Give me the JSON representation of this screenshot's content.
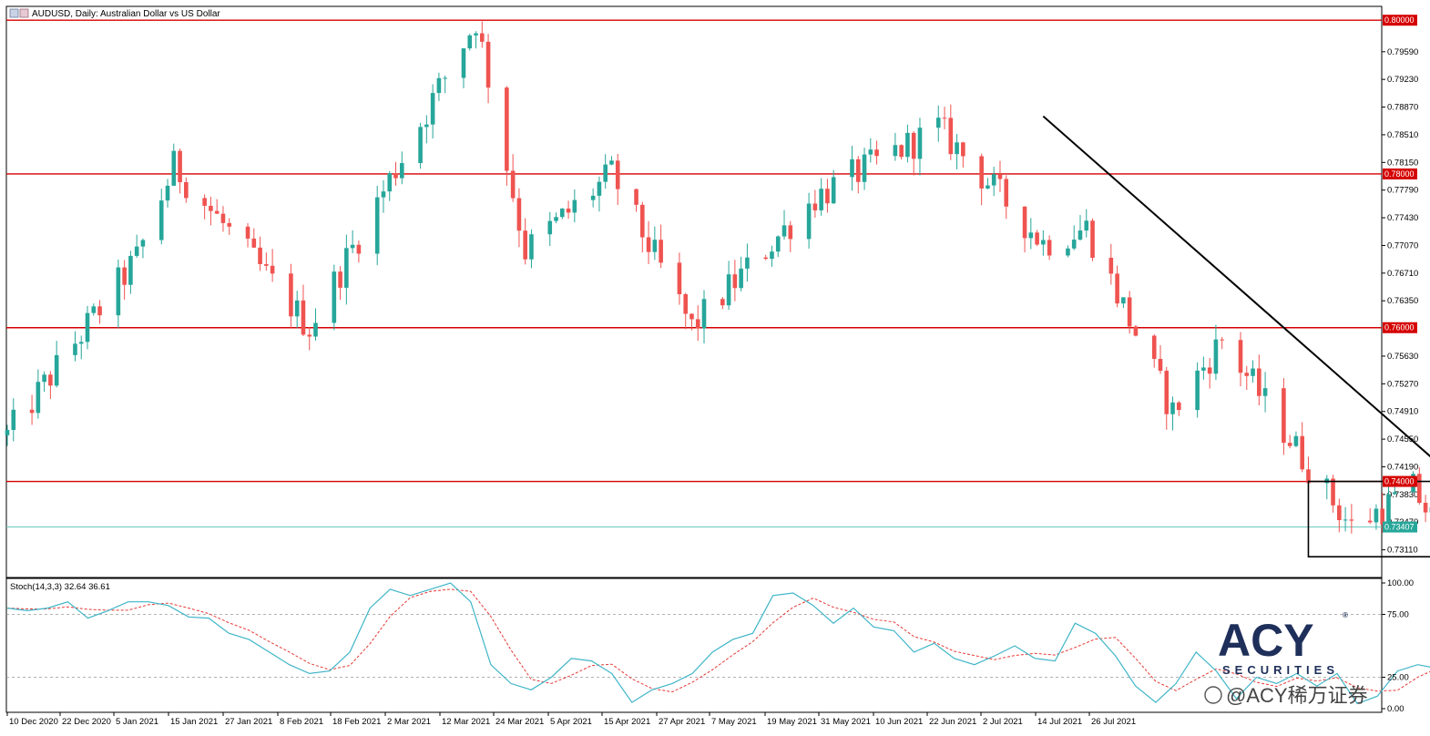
{
  "window": {
    "title": "AUDUSD, Daily:  Australian Dollar vs US Dollar",
    "icon": "chart-window-icon"
  },
  "colors": {
    "bull": "#26a69a",
    "bear": "#ef5350",
    "level_line": "#d50000",
    "current_price": "#6cc9c0",
    "trendline": "#000000",
    "stoch_main": "#3fb5c8",
    "stoch_signal": "#e53935",
    "logo": "#1e2f5a"
  },
  "price_axis": {
    "labels": [
      "0.79590",
      "0.79230",
      "0.78870",
      "0.78510",
      "0.78150",
      "0.77790",
      "0.77430",
      "0.77070",
      "0.76710",
      "0.76350",
      "0.75630",
      "0.75270",
      "0.74910",
      "0.74550",
      "0.74190",
      "0.73830",
      "0.73470",
      "0.73110"
    ],
    "levels": [
      "0.80000",
      "0.78000",
      "0.76000",
      "0.74000"
    ],
    "current": "0.73407"
  },
  "stoch_panel": {
    "label": "Stoch(14,3,3) 32.64 36.61",
    "axis_labels": [
      "100.00",
      "75.00",
      "25.00",
      "0.00"
    ]
  },
  "time_axis": {
    "labels": [
      "10 Dec 2020",
      "22 Dec 2020",
      "5 Jan 2021",
      "15 Jan 2021",
      "27 Jan 2021",
      "8 Feb 2021",
      "18 Feb 2021",
      "2 Mar 2021",
      "12 Mar 2021",
      "24 Mar 2021",
      "5 Apr 2021",
      "15 Apr 2021",
      "27 Apr 2021",
      "7 May 2021",
      "19 May 2021",
      "31 May 2021",
      "10 Jun 2021",
      "22 Jun 2021",
      "2 Jul 2021",
      "14 Jul 2021",
      "26 Jul 2021"
    ]
  },
  "logo": {
    "main": "ACY",
    "sub": "SECURITIES",
    "registered": "®"
  },
  "watermark": {
    "text": "@ACY稀万证券"
  },
  "chart_data": {
    "type": "candlestick",
    "symbol": "AUDUSD",
    "timeframe": "Daily",
    "title": "Australian Dollar vs US Dollar",
    "ylim": [
      0.729,
      0.801
    ],
    "x": [
      "10 Dec 2020",
      "22 Dec 2020",
      "5 Jan 2021",
      "15 Jan 2021",
      "27 Jan 2021",
      "8 Feb 2021",
      "18 Feb 2021",
      "2 Mar 2021",
      "12 Mar 2021",
      "24 Mar 2021",
      "5 Apr 2021",
      "15 Apr 2021",
      "27 Apr 2021",
      "7 May 2021",
      "19 May 2021",
      "31 May 2021",
      "10 Jun 2021",
      "22 Jun 2021",
      "2 Jul 2021",
      "14 Jul 2021",
      "26 Jul 2021"
    ],
    "horizontal_levels": [
      0.8,
      0.78,
      0.76,
      0.74
    ],
    "current_price": 0.73407,
    "trendline": {
      "from": [
        "2021-05-27",
        0.7875
      ],
      "to": [
        "2021-08-18",
        0.729
      ]
    },
    "box": {
      "from": "2021-07-09",
      "to": "2021-08-18",
      "top": 0.74,
      "bottom": 0.7302
    },
    "key_points": [
      [
        "2020-12-10",
        0.746
      ],
      [
        "2020-12-31",
        0.769
      ],
      [
        "2021-01-06",
        0.781
      ],
      [
        "2021-01-28",
        0.76
      ],
      [
        "2021-02-24",
        0.8
      ],
      [
        "2021-03-04",
        0.77
      ],
      [
        "2021-03-18",
        0.78
      ],
      [
        "2021-03-31",
        0.76
      ],
      [
        "2021-04-20",
        0.777
      ],
      [
        "2021-05-10",
        0.786
      ],
      [
        "2021-05-27",
        0.771
      ],
      [
        "2021-06-03",
        0.773
      ],
      [
        "2021-06-17",
        0.749
      ],
      [
        "2021-06-25",
        0.7585
      ],
      [
        "2021-07-09",
        0.742
      ],
      [
        "2021-07-16",
        0.734
      ],
      [
        "2021-07-26",
        0.739
      ],
      [
        "2021-07-30",
        0.7341
      ]
    ],
    "stochastic": {
      "name": "Stoch(14,3,3)",
      "main_value": 32.64,
      "signal_value": 36.61,
      "ylim": [
        0,
        100
      ],
      "levels": [
        75,
        25
      ],
      "main": [
        80,
        78,
        80,
        85,
        72,
        78,
        85,
        85,
        82,
        73,
        72,
        60,
        55,
        45,
        35,
        28,
        30,
        45,
        80,
        95,
        90,
        95,
        100,
        85,
        35,
        20,
        15,
        25,
        40,
        38,
        28,
        5,
        15,
        20,
        28,
        45,
        55,
        60,
        90,
        92,
        82,
        68,
        80,
        65,
        62,
        45,
        52,
        40,
        35,
        42,
        50,
        40,
        38,
        68,
        60,
        42,
        18,
        5,
        20,
        45,
        30,
        8,
        25,
        20,
        28,
        18,
        28,
        4,
        10,
        30,
        35,
        32
      ]
    }
  }
}
